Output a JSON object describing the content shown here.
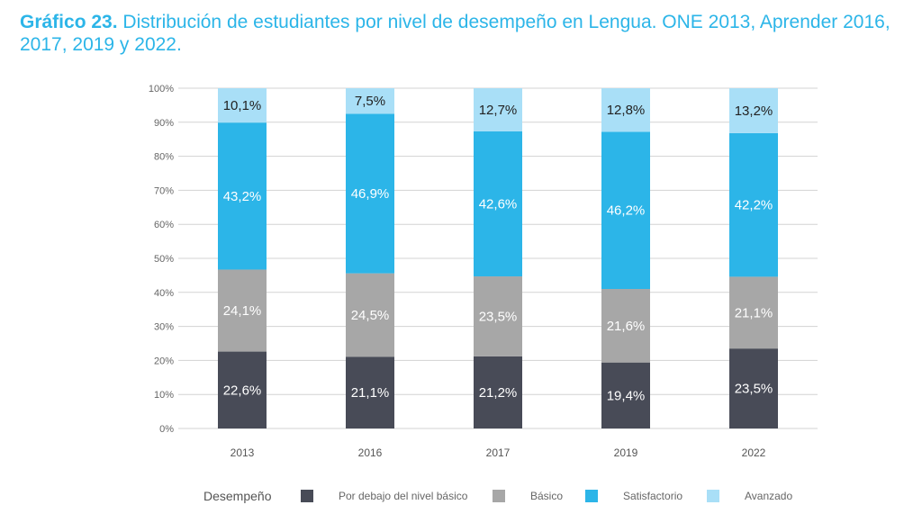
{
  "title_bold": "Gráfico 23.",
  "title_rest": "Distribución de estudiantes por nivel de desempeño en Lengua. ONE 2013, Aprender 2016, 2017, 2019 y 2022.",
  "chart_data": {
    "type": "bar",
    "stacked": true,
    "categories": [
      "2013",
      "2016",
      "2017",
      "2019",
      "2022"
    ],
    "series": [
      {
        "name": "Por debajo del nivel básico",
        "values": [
          22.6,
          21.1,
          21.2,
          19.4,
          23.5
        ],
        "labels": [
          "22,6%",
          "21,1%",
          "21,2%",
          "19,4%",
          "23,5%"
        ],
        "color": "#484b57",
        "label_color": "#ffffff"
      },
      {
        "name": "Básico",
        "values": [
          24.1,
          24.5,
          23.5,
          21.6,
          21.1
        ],
        "labels": [
          "24,1%",
          "24,5%",
          "23,5%",
          "21,6%",
          "21,1%"
        ],
        "color": "#a7a7a7",
        "label_color": "#ffffff"
      },
      {
        "name": "Satisfactorio",
        "values": [
          43.2,
          46.9,
          42.6,
          46.2,
          42.2
        ],
        "labels": [
          "43,2%",
          "46,9%",
          "42,6%",
          "46,2%",
          "42,2%"
        ],
        "color": "#2cb5e8",
        "label_color": "#ffffff"
      },
      {
        "name": "Avanzado",
        "values": [
          10.1,
          7.5,
          12.7,
          12.8,
          13.2
        ],
        "labels": [
          "10,1%",
          "7,5%",
          "12,7%",
          "12,8%",
          "13,2%"
        ],
        "color": "#a9dff7",
        "label_color": "#222222"
      }
    ],
    "yticks": [
      "0%",
      "10%",
      "20%",
      "30%",
      "40%",
      "50%",
      "60%",
      "70%",
      "80%",
      "90%",
      "100%"
    ],
    "ylim": [
      0,
      100
    ],
    "grid": true,
    "legend_title": "Desempeño",
    "legend_position": "bottom"
  }
}
